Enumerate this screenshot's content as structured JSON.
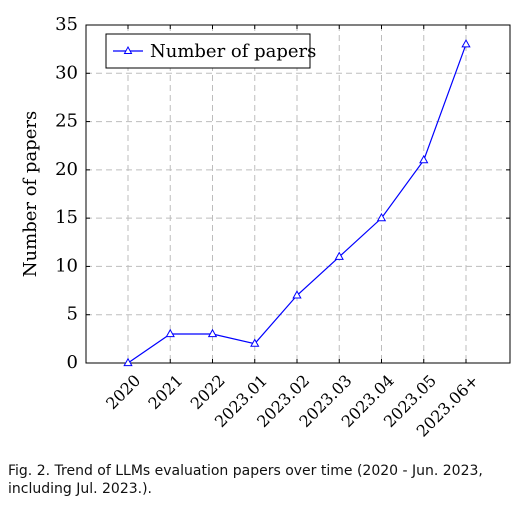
{
  "chart_data": {
    "type": "line",
    "categories": [
      "2020",
      "2021",
      "2022",
      "2023.01",
      "2023.02",
      "2023.03",
      "2023.04",
      "2023.05",
      "2023.06+"
    ],
    "series": [
      {
        "name": "Number of papers",
        "values": [
          0,
          3,
          3,
          2,
          7,
          11,
          15,
          21,
          33
        ]
      }
    ],
    "xlabel": "",
    "ylabel": "Number of papers",
    "ylim": [
      0,
      35
    ],
    "yticks": [
      0,
      5,
      10,
      15,
      20,
      25,
      30,
      35
    ],
    "grid": true,
    "legend_position": "top-left",
    "line_color": "#0000ff",
    "marker": "triangle-outline"
  },
  "caption": {
    "text": "Fig. 2. Trend of LLMs evaluation papers over time (2020 - Jun. 2023, including Jul. 2023.)."
  }
}
